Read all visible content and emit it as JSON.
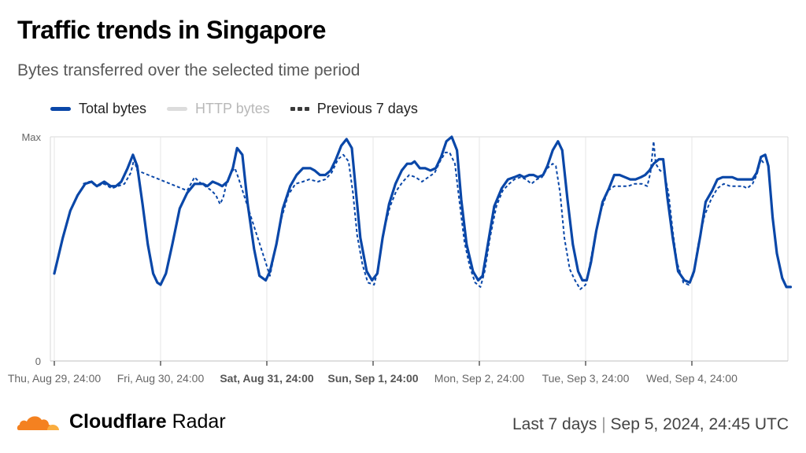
{
  "title": "Traffic trends in Singapore",
  "subtitle": "Bytes transferred over the selected time period",
  "legend": [
    {
      "label": "Total bytes",
      "color": "#0a47a8",
      "style": "solid",
      "active": true
    },
    {
      "label": "HTTP bytes",
      "color": "#dcdcdc",
      "style": "solid",
      "active": false
    },
    {
      "label": "Previous 7 days",
      "color": "#3a3a3a",
      "style": "dashed",
      "active": true
    }
  ],
  "chart_data": {
    "type": "line",
    "y_tick_labels": [
      "Max",
      "0"
    ],
    "x_tick_labels": [
      {
        "label": "Thu, Aug 29, 24:00",
        "bold": false
      },
      {
        "label": "Fri, Aug 30, 24:00",
        "bold": false
      },
      {
        "label": "Sat, Aug 31, 24:00",
        "bold": true
      },
      {
        "label": "Sun, Sep 1, 24:00",
        "bold": true
      },
      {
        "label": "Mon, Sep 2, 24:00",
        "bold": false
      },
      {
        "label": "Tue, Sep 3, 24:00",
        "bold": false
      },
      {
        "label": "Wed, Sep 4, 24:00",
        "bold": false
      }
    ],
    "x_range_days": [
      0,
      6.83
    ],
    "ylim": [
      0,
      1
    ],
    "grid": true,
    "legend_position": "top-left",
    "series": [
      {
        "name": "Total bytes",
        "color": "#0a47a8",
        "style": "solid",
        "points": [
          [
            0.0,
            0.39
          ],
          [
            0.08,
            0.55
          ],
          [
            0.15,
            0.67
          ],
          [
            0.22,
            0.74
          ],
          [
            0.29,
            0.79
          ],
          [
            0.35,
            0.8
          ],
          [
            0.4,
            0.78
          ],
          [
            0.47,
            0.8
          ],
          [
            0.53,
            0.78
          ],
          [
            0.58,
            0.78
          ],
          [
            0.63,
            0.8
          ],
          [
            0.69,
            0.86
          ],
          [
            0.74,
            0.92
          ],
          [
            0.78,
            0.87
          ],
          [
            0.83,
            0.7
          ],
          [
            0.88,
            0.52
          ],
          [
            0.93,
            0.39
          ],
          [
            0.97,
            0.35
          ],
          [
            1.0,
            0.34
          ],
          [
            1.05,
            0.39
          ],
          [
            1.11,
            0.52
          ],
          [
            1.18,
            0.68
          ],
          [
            1.25,
            0.75
          ],
          [
            1.32,
            0.79
          ],
          [
            1.37,
            0.79
          ],
          [
            1.4,
            0.79
          ],
          [
            1.44,
            0.78
          ],
          [
            1.49,
            0.8
          ],
          [
            1.54,
            0.79
          ],
          [
            1.58,
            0.78
          ],
          [
            1.63,
            0.8
          ],
          [
            1.68,
            0.86
          ],
          [
            1.72,
            0.95
          ],
          [
            1.77,
            0.92
          ],
          [
            1.82,
            0.7
          ],
          [
            1.88,
            0.5
          ],
          [
            1.93,
            0.38
          ],
          [
            1.99,
            0.36
          ],
          [
            2.03,
            0.4
          ],
          [
            2.09,
            0.52
          ],
          [
            2.15,
            0.68
          ],
          [
            2.22,
            0.78
          ],
          [
            2.28,
            0.83
          ],
          [
            2.34,
            0.86
          ],
          [
            2.41,
            0.86
          ],
          [
            2.45,
            0.85
          ],
          [
            2.5,
            0.83
          ],
          [
            2.55,
            0.83
          ],
          [
            2.6,
            0.85
          ],
          [
            2.65,
            0.9
          ],
          [
            2.7,
            0.96
          ],
          [
            2.75,
            0.99
          ],
          [
            2.8,
            0.95
          ],
          [
            2.84,
            0.75
          ],
          [
            2.88,
            0.55
          ],
          [
            2.94,
            0.4
          ],
          [
            2.99,
            0.36
          ],
          [
            3.04,
            0.39
          ],
          [
            3.09,
            0.55
          ],
          [
            3.15,
            0.7
          ],
          [
            3.21,
            0.79
          ],
          [
            3.27,
            0.85
          ],
          [
            3.32,
            0.88
          ],
          [
            3.36,
            0.88
          ],
          [
            3.39,
            0.89
          ],
          [
            3.44,
            0.86
          ],
          [
            3.49,
            0.86
          ],
          [
            3.54,
            0.85
          ],
          [
            3.59,
            0.86
          ],
          [
            3.64,
            0.91
          ],
          [
            3.69,
            0.98
          ],
          [
            3.74,
            1.0
          ],
          [
            3.79,
            0.94
          ],
          [
            3.83,
            0.72
          ],
          [
            3.88,
            0.52
          ],
          [
            3.94,
            0.4
          ],
          [
            3.99,
            0.36
          ],
          [
            4.03,
            0.38
          ],
          [
            4.08,
            0.52
          ],
          [
            4.14,
            0.69
          ],
          [
            4.21,
            0.77
          ],
          [
            4.27,
            0.81
          ],
          [
            4.33,
            0.82
          ],
          [
            4.38,
            0.83
          ],
          [
            4.42,
            0.82
          ],
          [
            4.47,
            0.83
          ],
          [
            4.51,
            0.83
          ],
          [
            4.55,
            0.82
          ],
          [
            4.6,
            0.83
          ],
          [
            4.64,
            0.87
          ],
          [
            4.69,
            0.94
          ],
          [
            4.74,
            0.98
          ],
          [
            4.78,
            0.94
          ],
          [
            4.83,
            0.72
          ],
          [
            4.88,
            0.52
          ],
          [
            4.93,
            0.4
          ],
          [
            4.97,
            0.36
          ],
          [
            5.01,
            0.36
          ],
          [
            5.05,
            0.44
          ],
          [
            5.1,
            0.58
          ],
          [
            5.16,
            0.71
          ],
          [
            5.22,
            0.77
          ],
          [
            5.27,
            0.83
          ],
          [
            5.32,
            0.83
          ],
          [
            5.37,
            0.82
          ],
          [
            5.42,
            0.81
          ],
          [
            5.47,
            0.81
          ],
          [
            5.52,
            0.82
          ],
          [
            5.56,
            0.83
          ],
          [
            5.6,
            0.85
          ],
          [
            5.64,
            0.88
          ],
          [
            5.69,
            0.9
          ],
          [
            5.73,
            0.9
          ],
          [
            5.77,
            0.73
          ],
          [
            5.82,
            0.55
          ],
          [
            5.87,
            0.4
          ],
          [
            5.93,
            0.36
          ],
          [
            5.98,
            0.35
          ],
          [
            6.02,
            0.4
          ],
          [
            6.08,
            0.56
          ],
          [
            6.13,
            0.71
          ],
          [
            6.19,
            0.76
          ],
          [
            6.24,
            0.81
          ],
          [
            6.29,
            0.82
          ],
          [
            6.33,
            0.82
          ],
          [
            6.38,
            0.82
          ],
          [
            6.43,
            0.81
          ],
          [
            6.48,
            0.81
          ],
          [
            6.52,
            0.81
          ],
          [
            6.57,
            0.81
          ],
          [
            6.61,
            0.84
          ],
          [
            6.65,
            0.91
          ],
          [
            6.69,
            0.92
          ],
          [
            6.72,
            0.87
          ],
          [
            6.76,
            0.64
          ],
          [
            6.8,
            0.48
          ],
          [
            6.85,
            0.37
          ],
          [
            6.89,
            0.33
          ],
          [
            6.93,
            0.33
          ]
        ]
      },
      {
        "name": "Previous 7 days",
        "color": "#0a47a8",
        "style": "dashed",
        "points": [
          [
            0.27,
            0.79
          ],
          [
            0.33,
            0.8
          ],
          [
            0.4,
            0.78
          ],
          [
            0.47,
            0.79
          ],
          [
            0.54,
            0.77
          ],
          [
            0.6,
            0.78
          ],
          [
            0.66,
            0.79
          ],
          [
            0.72,
            0.84
          ],
          [
            0.75,
            0.9
          ],
          [
            0.78,
            0.85
          ],
          [
            1.25,
            0.76
          ],
          [
            1.32,
            0.82
          ],
          [
            1.36,
            0.8
          ],
          [
            1.42,
            0.78
          ],
          [
            1.48,
            0.76
          ],
          [
            1.52,
            0.74
          ],
          [
            1.56,
            0.7
          ],
          [
            1.59,
            0.73
          ],
          [
            1.62,
            0.79
          ],
          [
            1.66,
            0.84
          ],
          [
            1.7,
            0.86
          ],
          [
            1.73,
            0.82
          ],
          [
            2.03,
            0.38
          ],
          [
            2.08,
            0.5
          ],
          [
            2.14,
            0.64
          ],
          [
            2.2,
            0.74
          ],
          [
            2.27,
            0.79
          ],
          [
            2.34,
            0.8
          ],
          [
            2.4,
            0.81
          ],
          [
            2.48,
            0.8
          ],
          [
            2.55,
            0.81
          ],
          [
            2.61,
            0.84
          ],
          [
            2.67,
            0.9
          ],
          [
            2.72,
            0.92
          ],
          [
            2.77,
            0.89
          ],
          [
            2.81,
            0.75
          ],
          [
            2.85,
            0.56
          ],
          [
            2.9,
            0.43
          ],
          [
            2.95,
            0.35
          ],
          [
            3.01,
            0.34
          ],
          [
            3.05,
            0.42
          ],
          [
            3.1,
            0.58
          ],
          [
            3.16,
            0.69
          ],
          [
            3.22,
            0.76
          ],
          [
            3.28,
            0.8
          ],
          [
            3.34,
            0.83
          ],
          [
            3.4,
            0.82
          ],
          [
            3.46,
            0.8
          ],
          [
            3.52,
            0.82
          ],
          [
            3.58,
            0.84
          ],
          [
            3.63,
            0.89
          ],
          [
            3.68,
            0.93
          ],
          [
            3.72,
            0.93
          ],
          [
            3.77,
            0.88
          ],
          [
            3.81,
            0.72
          ],
          [
            3.86,
            0.53
          ],
          [
            3.91,
            0.42
          ],
          [
            3.96,
            0.35
          ],
          [
            4.01,
            0.33
          ],
          [
            4.05,
            0.4
          ],
          [
            4.1,
            0.55
          ],
          [
            4.16,
            0.69
          ],
          [
            4.22,
            0.76
          ],
          [
            4.28,
            0.79
          ],
          [
            4.33,
            0.81
          ],
          [
            4.39,
            0.82
          ],
          [
            4.44,
            0.81
          ],
          [
            4.49,
            0.79
          ],
          [
            4.54,
            0.81
          ],
          [
            4.59,
            0.82
          ],
          [
            4.64,
            0.86
          ],
          [
            4.69,
            0.88
          ],
          [
            4.72,
            0.87
          ],
          [
            4.76,
            0.75
          ],
          [
            4.8,
            0.55
          ],
          [
            4.85,
            0.41
          ],
          [
            4.9,
            0.36
          ],
          [
            4.95,
            0.32
          ],
          [
            5.0,
            0.34
          ],
          [
            5.04,
            0.43
          ],
          [
            5.09,
            0.56
          ],
          [
            5.15,
            0.68
          ],
          [
            5.21,
            0.76
          ],
          [
            5.27,
            0.78
          ],
          [
            5.33,
            0.78
          ],
          [
            5.4,
            0.78
          ],
          [
            5.46,
            0.79
          ],
          [
            5.53,
            0.79
          ],
          [
            5.58,
            0.78
          ],
          [
            5.61,
            0.84
          ],
          [
            5.64,
            0.98
          ],
          [
            5.66,
            0.88
          ],
          [
            5.7,
            0.85
          ],
          [
            5.74,
            0.84
          ],
          [
            5.78,
            0.75
          ],
          [
            5.82,
            0.58
          ],
          [
            5.86,
            0.44
          ],
          [
            5.92,
            0.35
          ],
          [
            5.97,
            0.34
          ],
          [
            6.01,
            0.38
          ],
          [
            6.06,
            0.52
          ],
          [
            6.12,
            0.65
          ],
          [
            6.18,
            0.72
          ],
          [
            6.24,
            0.77
          ],
          [
            6.3,
            0.79
          ],
          [
            6.36,
            0.78
          ],
          [
            6.42,
            0.78
          ],
          [
            6.48,
            0.78
          ],
          [
            6.52,
            0.77
          ],
          [
            6.57,
            0.79
          ],
          [
            6.61,
            0.83
          ],
          [
            6.65,
            0.9
          ],
          [
            6.68,
            0.88
          ]
        ]
      }
    ]
  },
  "footer": {
    "brand_bold": "Cloudflare",
    "brand_light": " Radar",
    "range": "Last 7 days",
    "separator": " | ",
    "timestamp": "Sep 5, 2024, 24:45 UTC",
    "logo_colors": [
      "#f48120",
      "#faad3f"
    ]
  }
}
